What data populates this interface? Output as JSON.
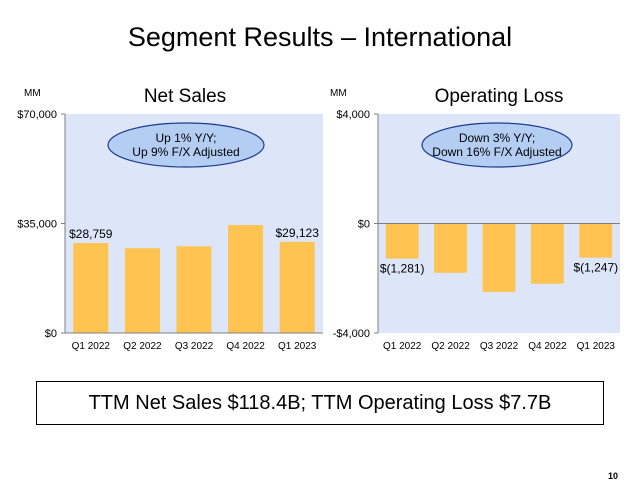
{
  "slide_title": "Segment Results – International",
  "summary": "TTM Net Sales $118.4B; TTM Operating Loss $7.7B",
  "page_number": "10",
  "colors": {
    "bar": "#FEC351",
    "plot_bg": "#DDE6F8",
    "callout_fill": "#B4CDF2",
    "callout_stroke": "#1F3B8F"
  },
  "chart_data": [
    {
      "type": "bar",
      "title": "Net Sales",
      "unit_label": "MM",
      "categories": [
        "Q1 2022",
        "Q2 2022",
        "Q3 2022",
        "Q4 2022",
        "Q1 2023"
      ],
      "values": [
        28759,
        27100,
        27700,
        34500,
        29123
      ],
      "data_labels": [
        "$28,759",
        "",
        "",
        "",
        "$29,123"
      ],
      "ylim": [
        0,
        70000
      ],
      "yticks": [
        0,
        35000,
        70000
      ],
      "ytick_labels": [
        "$0",
        "$35,000",
        "$70,000"
      ],
      "callout": [
        "Up 1% Y/Y;",
        "Up 9% F/X Adjusted"
      ],
      "grid": false
    },
    {
      "type": "bar",
      "title": "Operating Loss",
      "unit_label": "MM",
      "categories": [
        "Q1 2022",
        "Q2 2022",
        "Q3 2022",
        "Q4 2022",
        "Q1 2023"
      ],
      "values": [
        -1281,
        -1800,
        -2500,
        -2200,
        -1247
      ],
      "data_labels": [
        "$(1,281)",
        "",
        "",
        "",
        "$(1,247)"
      ],
      "ylim": [
        -4000,
        4000
      ],
      "yticks": [
        -4000,
        0,
        4000
      ],
      "ytick_labels": [
        "-$4,000",
        "$0",
        "$4,000"
      ],
      "callout": [
        "Down 3% Y/Y;",
        "Down 16% F/X Adjusted"
      ],
      "grid": false
    }
  ]
}
